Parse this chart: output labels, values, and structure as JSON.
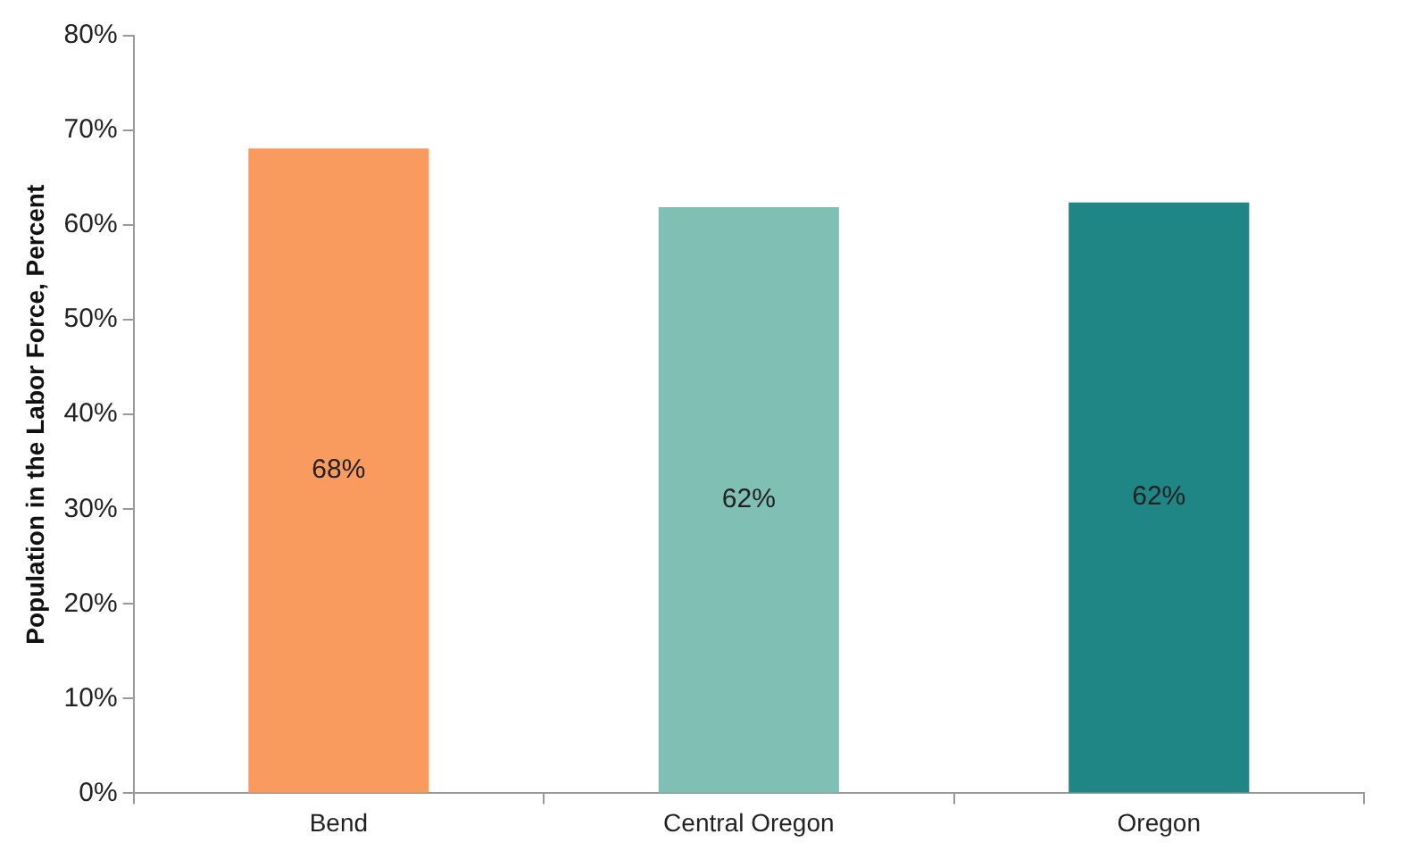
{
  "chart_data": {
    "type": "bar",
    "ylabel": "Population in the Labor Force, Percent",
    "categories": [
      "Bend",
      "Central Oregon",
      "Oregon"
    ],
    "values": [
      68.1,
      61.9,
      62.4
    ],
    "colors": [
      "#f99b5f",
      "#80bfb3",
      "#208585"
    ],
    "value_labels": [
      "68%",
      "62%",
      "62%"
    ],
    "ylim": [
      0,
      80
    ],
    "yticks": [
      {
        "value": 0,
        "label": "0%"
      },
      {
        "value": 10,
        "label": "10%"
      },
      {
        "value": 20,
        "label": "20%"
      },
      {
        "value": 30,
        "label": "30%"
      },
      {
        "value": 40,
        "label": "40%"
      },
      {
        "value": 50,
        "label": "50%"
      },
      {
        "value": 60,
        "label": "60%"
      },
      {
        "value": 70,
        "label": "70%"
      },
      {
        "value": 80,
        "label": "80%"
      }
    ],
    "grid": false,
    "legend": false
  }
}
